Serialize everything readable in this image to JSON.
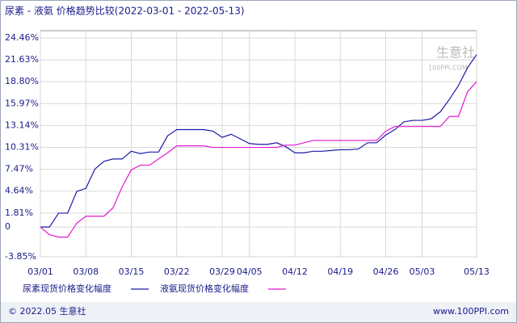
{
  "chart_data": {
    "type": "line",
    "title": "尿素 - 液氨 价格趋势比较(2022-03-01 - 2022-05-13)",
    "categories": [
      "03/01",
      null,
      null,
      null,
      null,
      "03/08",
      null,
      null,
      null,
      null,
      "03/15",
      null,
      null,
      null,
      null,
      "03/22",
      null,
      null,
      null,
      null,
      "03/29",
      null,
      null,
      "04/05",
      null,
      null,
      null,
      null,
      "04/12",
      null,
      null,
      null,
      null,
      "04/19",
      null,
      null,
      null,
      null,
      "04/26",
      null,
      null,
      null,
      "05/03",
      null,
      null,
      null,
      null,
      null,
      "05/13"
    ],
    "series": [
      {
        "name": "尿素现货价格变化幅度",
        "color": "#1a1aa6",
        "values": [
          0,
          0,
          1.8,
          1.8,
          4.6,
          5.0,
          7.5,
          8.5,
          8.8,
          8.8,
          9.8,
          9.5,
          9.7,
          9.7,
          11.8,
          12.6,
          12.6,
          12.6,
          12.6,
          12.4,
          11.6,
          12.0,
          11.4,
          10.8,
          10.7,
          10.7,
          10.9,
          10.4,
          9.6,
          9.6,
          9.8,
          9.8,
          9.9,
          10.0,
          10.0,
          10.1,
          10.9,
          10.9,
          11.9,
          12.6,
          13.6,
          13.8,
          13.8,
          14.0,
          14.9,
          16.5,
          18.3,
          20.6,
          22.3
        ]
      },
      {
        "name": "液氨现货价格变化幅度",
        "color": "#e01ad0",
        "values": [
          0,
          -1.0,
          -1.3,
          -1.3,
          0.5,
          1.4,
          1.4,
          1.4,
          2.5,
          5.2,
          7.4,
          8.0,
          8.0,
          8.8,
          9.6,
          10.5,
          10.5,
          10.5,
          10.5,
          10.3,
          10.3,
          10.3,
          10.3,
          10.3,
          10.3,
          10.3,
          10.3,
          10.6,
          10.6,
          10.9,
          11.2,
          11.2,
          11.2,
          11.2,
          11.2,
          11.2,
          11.2,
          11.2,
          12.4,
          13.0,
          13.0,
          13.0,
          13.0,
          13.0,
          13.0,
          14.3,
          14.3,
          17.5,
          18.8
        ]
      }
    ],
    "ylim": [
      -3.85,
      24.46
    ],
    "yticks": [
      {
        "value": -3.85,
        "label": "-3.85%"
      },
      0,
      {
        "value": 1.81,
        "label": "1.81%"
      },
      {
        "value": 4.64,
        "label": "4.64%"
      },
      {
        "value": 7.47,
        "label": "7.47%"
      },
      {
        "value": 10.31,
        "label": "10.31%"
      },
      {
        "value": 13.14,
        "label": "13.14%"
      },
      {
        "value": 15.97,
        "label": "15.97%"
      },
      {
        "value": 18.8,
        "label": "18.80%"
      },
      {
        "value": 21.63,
        "label": "21.63%"
      },
      {
        "value": 24.46,
        "label": "24.46%"
      }
    ],
    "grid": true,
    "watermark": [
      "生意社",
      "100PPI.COM"
    ],
    "footer": [
      "© 2022.05 生意社",
      "www.100PPI.com"
    ]
  }
}
